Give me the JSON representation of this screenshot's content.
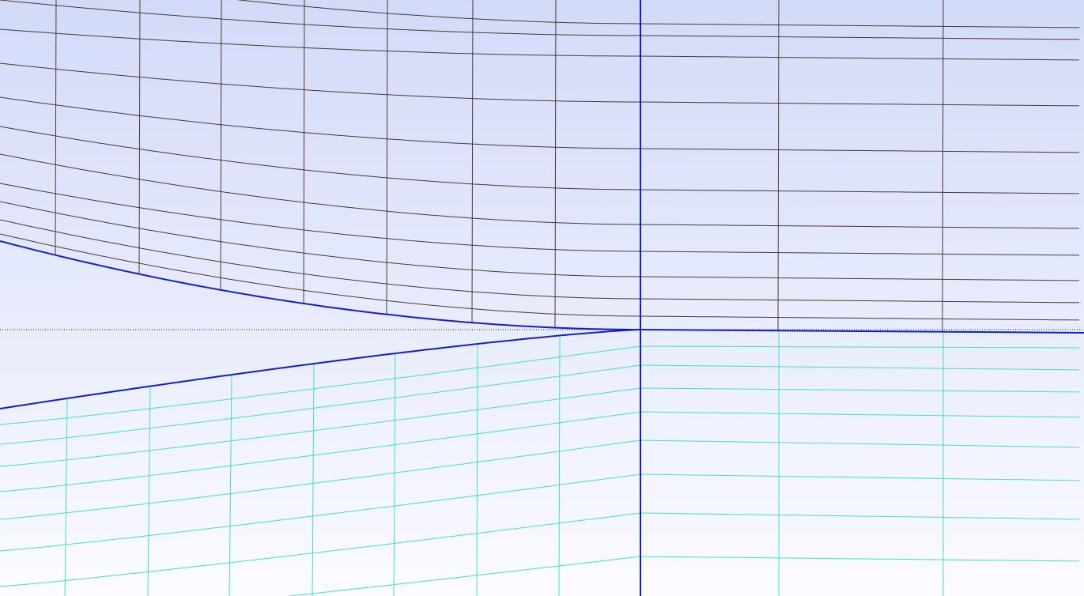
{
  "viewport": {
    "background_top": "#d3daf9",
    "background_bottom": "#fbfbff"
  },
  "colors": {
    "upper_mesh": "#4a3a2a",
    "lower_mesh": "#40e0c8",
    "boundary": "#1020c8",
    "reference_line": "#222222"
  },
  "mesh": {
    "upper_block": {
      "name": "upper-mesh-block",
      "line_color_key": "upper_mesh"
    },
    "lower_block": {
      "name": "lower-mesh-block",
      "line_color_key": "lower_mesh"
    }
  }
}
